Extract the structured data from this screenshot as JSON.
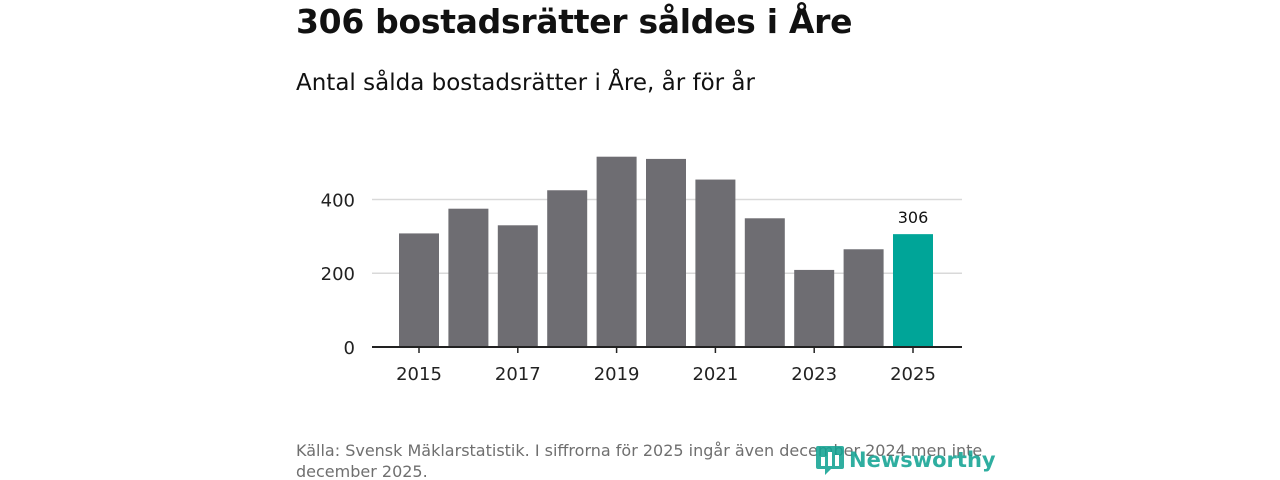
{
  "header": {
    "title": "306 bostadsrätter såldes i Åre",
    "subtitle": "Antal sålda bostadsrätter i Åre, år för år"
  },
  "chart_data": {
    "type": "bar",
    "categories": [
      "2015",
      "2016",
      "2017",
      "2018",
      "2019",
      "2020",
      "2021",
      "2022",
      "2023",
      "2024",
      "2025"
    ],
    "values": [
      308,
      375,
      330,
      425,
      516,
      510,
      454,
      349,
      209,
      265,
      306
    ],
    "x_tick_labels": [
      "2015",
      "2017",
      "2019",
      "2021",
      "2023",
      "2025"
    ],
    "y_ticks": [
      0,
      200,
      400
    ],
    "y_tick_labels": [
      "0",
      "200",
      "400"
    ],
    "ylim": [
      0,
      530
    ],
    "grid": true,
    "highlight_index": 10,
    "highlight_label": "306",
    "colors": {
      "bar": "#6e6d72",
      "highlight": "#00a598",
      "grid": "#d9d9d9",
      "axis": "#222222"
    }
  },
  "footer": {
    "source": "Källa: Svensk Mäklarstatistik. I siffrorna för 2025 ingår även december 2024 men inte december 2025.",
    "brand": "Newsworthy",
    "brand_icon": "bar-chart-logo-icon",
    "brand_color": "#13a393"
  }
}
